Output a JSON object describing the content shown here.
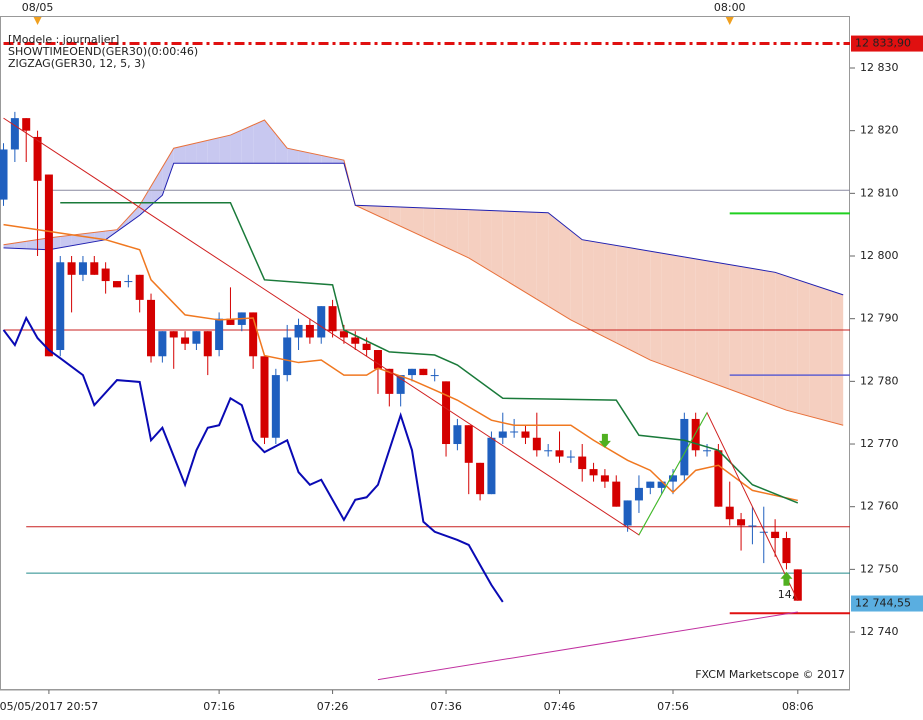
{
  "chart_data": {
    "type": "candlestick",
    "notes": [
      "[Modele : journalier]",
      "SHOWTIMEOEND(GER30)(0:00:46)",
      "ZIGZAG(GER30, 12, 5, 3)"
    ],
    "watermark": "FXCM Marketscope © 2017",
    "top_labels": [
      {
        "value": 3,
        "label": "08/05"
      },
      {
        "value": 64,
        "label": "08:00"
      }
    ],
    "ylim": [
      12730.75,
      12840.85
    ],
    "xlim": [
      -0.31,
      74.6
    ],
    "yticks": [
      {
        "value": 12740,
        "label": "12 740"
      },
      {
        "value": 12750,
        "label": "12 750"
      },
      {
        "value": 12760,
        "label": "12 760"
      },
      {
        "value": 12770,
        "label": "12 770"
      },
      {
        "value": 12780,
        "label": "12 780"
      },
      {
        "value": 12790,
        "label": "12 790"
      },
      {
        "value": 12800,
        "label": "12 800"
      },
      {
        "value": 12810,
        "label": "12 810"
      },
      {
        "value": 12820,
        "label": "12 820"
      },
      {
        "value": 12830,
        "label": "12 830"
      }
    ],
    "xticks": [
      {
        "value": 4,
        "label": "05/05/2017 20:57"
      },
      {
        "value": 19,
        "label": "07:16"
      },
      {
        "value": 29,
        "label": "07:26"
      },
      {
        "value": 39,
        "label": "07:36"
      },
      {
        "value": 49,
        "label": "07:46"
      },
      {
        "value": 59,
        "label": "07:56"
      },
      {
        "value": 70,
        "label": "08:06"
      }
    ],
    "up_color": "#1f5fbf",
    "down_color": "#d40000",
    "open": [
      12809,
      12817,
      12822,
      12819,
      12813,
      12785,
      12799,
      12797,
      12799,
      12798,
      12796,
      12796,
      12797,
      12793,
      12784,
      12788,
      12787,
      12786,
      12788,
      12785,
      12790,
      12789,
      12791,
      12784,
      12771,
      12781,
      12787,
      12789,
      12787,
      12792,
      12788,
      12787,
      12786,
      12785,
      12782,
      12778,
      12781,
      12782,
      12781,
      12780,
      12770,
      12773,
      12767,
      12762,
      12771,
      12772,
      12772,
      12771,
      12769,
      12769,
      12768,
      12768,
      12766,
      12765,
      12764,
      12757,
      12761,
      12763,
      12763,
      12764,
      12765,
      12774,
      12769,
      12769,
      12760,
      12758,
      12757,
      12756,
      12756,
      12755,
      12750
    ],
    "high": [
      12818,
      12823,
      12822,
      12820,
      12813,
      12800,
      12800,
      12800,
      12800,
      12799,
      12796,
      12797,
      12797,
      12794,
      12788,
      12788,
      12788,
      12788,
      12788,
      12791,
      12795,
      12791,
      12791,
      12784,
      12782,
      12789,
      12790,
      12790,
      12792,
      12793,
      12789,
      12788,
      12787,
      12785,
      12782,
      12781,
      12782,
      12782,
      12782,
      12780,
      12774,
      12773,
      12767,
      12772,
      12775,
      12774,
      12773,
      12775,
      12770,
      12772,
      12769,
      12770,
      12767,
      12766,
      12765,
      12761,
      12765,
      12764,
      12764,
      12766,
      12775,
      12775,
      12770,
      12770,
      12764,
      12759,
      12760,
      12760,
      12758,
      12756,
      12750
    ],
    "low": [
      12808,
      12815,
      12815,
      12800,
      12784,
      12784,
      12791,
      12796,
      12797,
      12794,
      12795,
      12795,
      12791,
      12783,
      12783,
      12782,
      12785,
      12785,
      12781,
      12784,
      12789,
      12788,
      12782,
      12770,
      12770,
      12780,
      12785,
      12786,
      12786,
      12787,
      12786,
      12785,
      12784,
      12778,
      12776,
      12776,
      12780,
      12781,
      12780,
      12768,
      12769,
      12762,
      12761,
      12762,
      12770,
      12771,
      12770,
      12768,
      12768,
      12767,
      12767,
      12764,
      12764,
      12763,
      12760,
      12756,
      12759,
      12762,
      12762,
      12762,
      12764,
      12768,
      12768,
      12760,
      12757,
      12753,
      12754,
      12751,
      12752,
      12750,
      12745
    ],
    "close": [
      12817,
      12822,
      12820,
      12812,
      12784,
      12799,
      12797,
      12799,
      12797,
      12796,
      12795,
      12796,
      12793,
      12784,
      12788,
      12787,
      12786,
      12788,
      12784,
      12790,
      12789,
      12791,
      12784,
      12771,
      12781,
      12787,
      12789,
      12787,
      12792,
      12788,
      12787,
      12786,
      12785,
      12782,
      12778,
      12781,
      12782,
      12781,
      12781,
      12770,
      12773,
      12767,
      12762,
      12771,
      12772,
      12772,
      12771,
      12769,
      12769,
      12768,
      12768,
      12766,
      12765,
      12764,
      12760,
      12761,
      12763,
      12764,
      12764,
      12765,
      12774,
      12769,
      12769,
      12760,
      12758,
      12757,
      12757,
      12756,
      12755,
      12751,
      12745
    ],
    "cloud": {
      "up_color": "#c8c8f0",
      "down_color": "#f5cfc0",
      "span_a": {
        "color": "#e8703a",
        "x": [
          0,
          4,
          10,
          12,
          15,
          20,
          23,
          25,
          30,
          31,
          41,
          50,
          57,
          69,
          74
        ],
        "values": [
          12801.8,
          12802.9,
          12804.2,
          12808.1,
          12817.2,
          12819.3,
          12821.7,
          12817.2,
          12815.3,
          12808.1,
          12799.7,
          12789.8,
          12783.4,
          12775.4,
          12773.0
        ]
      },
      "span_b": {
        "color": "#2020b0",
        "x": [
          0,
          4,
          9,
          12,
          14,
          15,
          30,
          31,
          48,
          51,
          68,
          74
        ],
        "values": [
          12801.3,
          12801.0,
          12802.6,
          12806.5,
          12809.7,
          12814.8,
          12814.8,
          12808.1,
          12806.9,
          12802.6,
          12797.4,
          12793.8
        ]
      }
    },
    "lines": [
      {
        "color": "#0a0ab4",
        "width": 2,
        "x": [
          0,
          1,
          2,
          3,
          4,
          5,
          7,
          8,
          10,
          12,
          13,
          14,
          16,
          17,
          18,
          19,
          20,
          21,
          22,
          23,
          25,
          26,
          27,
          28,
          30,
          31,
          32,
          33,
          35,
          36,
          37,
          38,
          40,
          41,
          42,
          43,
          44
        ],
        "values": [
          12788.2,
          12785.8,
          12790.1,
          12786.9,
          12785.0,
          12783.7,
          12781.0,
          12776.2,
          12780.2,
          12779.9,
          12770.6,
          12772.6,
          12763.5,
          12769.0,
          12772.6,
          12773.0,
          12777.3,
          12776.2,
          12770.6,
          12768.7,
          12770.6,
          12765.5,
          12763.5,
          12764.3,
          12757.9,
          12761.1,
          12761.5,
          12763.5,
          12774.6,
          12769.0,
          12757.6,
          12756.0,
          12754.7,
          12753.9,
          12750.7,
          12747.5,
          12744.8
        ]
      },
      {
        "color": "#f07820",
        "width": 1.5,
        "x": [
          0,
          6,
          9,
          12,
          13,
          16,
          19,
          22,
          23,
          26,
          28,
          30,
          32,
          33,
          36,
          38,
          40,
          43,
          45,
          50,
          52,
          55,
          57,
          59,
          61,
          63,
          66,
          70
        ],
        "values": [
          12805.0,
          12803.4,
          12802.6,
          12801.0,
          12796.2,
          12790.6,
          12789.8,
          12790.1,
          12784.1,
          12783.0,
          12783.4,
          12781.0,
          12781.0,
          12782.1,
          12780.2,
          12778.6,
          12777.0,
          12773.8,
          12773.0,
          12773.0,
          12770.6,
          12767.4,
          12765.8,
          12762.3,
          12765.8,
          12766.6,
          12762.6,
          12761.0
        ]
      },
      {
        "color": "#1a7a3a",
        "width": 1.5,
        "x": [
          5,
          20,
          23,
          29,
          30,
          34,
          38,
          40,
          44,
          54,
          56,
          60,
          63,
          66,
          70
        ],
        "values": [
          12808.5,
          12808.5,
          12796.2,
          12795.4,
          12788.2,
          12784.7,
          12784.2,
          12782.6,
          12777.3,
          12777.0,
          12771.4,
          12770.6,
          12769.0,
          12763.5,
          12760.6
        ]
      },
      {
        "color": "#d02020",
        "width": 1,
        "x": [
          0,
          56,
          62,
          70
        ],
        "values": [
          12822,
          12755.5,
          12775,
          12745
        ]
      },
      {
        "color": "#30d030",
        "width": 1,
        "x": [
          56,
          62
        ],
        "values": [
          12755.5,
          12775
        ]
      },
      {
        "color": "#c030a0",
        "width": 1,
        "x": [
          33,
          70
        ],
        "values": [
          12732.4,
          12743.2
        ]
      }
    ],
    "levels": [
      {
        "value": 12833.9,
        "color": "#e01010",
        "width": 3,
        "dash": true,
        "start": 0,
        "label": "12 833,90",
        "label_color": "#e01010"
      },
      {
        "value": 12810.5,
        "color": "#8a8aa0",
        "width": 1,
        "start": 4
      },
      {
        "value": 12788.2,
        "color": "#c82020",
        "width": 1,
        "start": 0
      },
      {
        "value": 12756.8,
        "color": "#c82020",
        "width": 1,
        "start": 2
      },
      {
        "value": 12749.4,
        "color": "#208a8a",
        "width": 1,
        "start": 2
      },
      {
        "value": 12806.8,
        "color": "#20d020",
        "width": 2,
        "start": 64
      },
      {
        "value": 12781.0,
        "color": "#6060d0",
        "width": 1.5,
        "start": 64
      },
      {
        "value": 12743.0,
        "color": "#e01010",
        "width": 2,
        "start": 64
      },
      {
        "value": 12744.55,
        "color": "#5aaee0",
        "width": 0,
        "start": 74,
        "label": "12 744,55",
        "label_color": "#5aaee0"
      }
    ],
    "markers": [
      {
        "x": 53,
        "y": 12770.5,
        "dir": "down",
        "color": "#50b020"
      },
      {
        "x": 69,
        "y": 12748.5,
        "dir": "up",
        "color": "#50b020",
        "label": "14,"
      }
    ]
  }
}
